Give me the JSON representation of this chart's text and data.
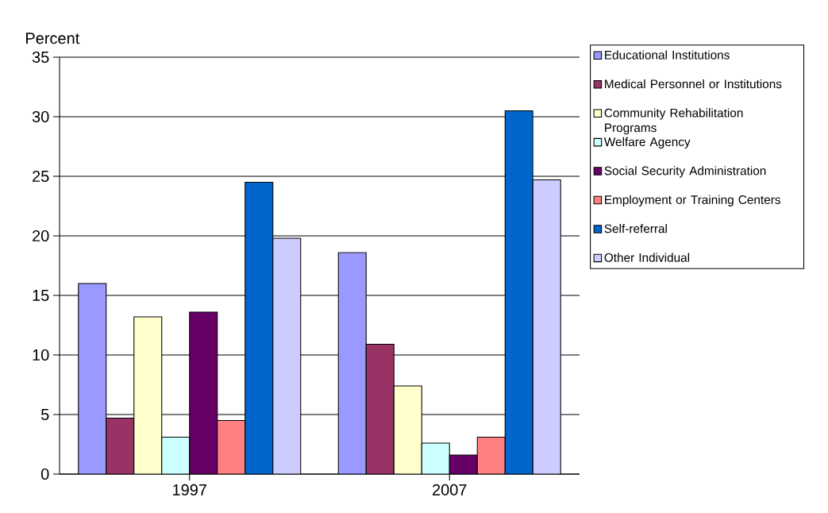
{
  "chart_data": {
    "type": "bar",
    "ylabel": "Percent",
    "categories": [
      "1997",
      "2007"
    ],
    "series": [
      {
        "name": "Educational Institutions",
        "color": "#9999ff",
        "values": [
          16.0,
          18.6
        ]
      },
      {
        "name": "Medical Personnel or Institutions",
        "color": "#993366",
        "values": [
          4.7,
          10.9
        ]
      },
      {
        "name": "Community Rehabilitation Programs",
        "color": "#ffffcc",
        "values": [
          13.2,
          7.4
        ]
      },
      {
        "name": "Welfare Agency",
        "color": "#ccffff",
        "values": [
          3.1,
          2.6
        ]
      },
      {
        "name": "Social Security Administration",
        "color": "#660066",
        "values": [
          13.6,
          1.6
        ]
      },
      {
        "name": "Employment or Training Centers",
        "color": "#ff8080",
        "values": [
          4.5,
          3.1
        ]
      },
      {
        "name": "Self-referral",
        "color": "#0066cc",
        "values": [
          24.5,
          30.5
        ]
      },
      {
        "name": "Other Individual",
        "color": "#ccccff",
        "values": [
          19.8,
          24.7
        ]
      }
    ],
    "ylim": [
      0,
      35
    ],
    "yticks": [
      0,
      5,
      10,
      15,
      20,
      25,
      30,
      35
    ],
    "grid": "y",
    "legend": "right"
  }
}
